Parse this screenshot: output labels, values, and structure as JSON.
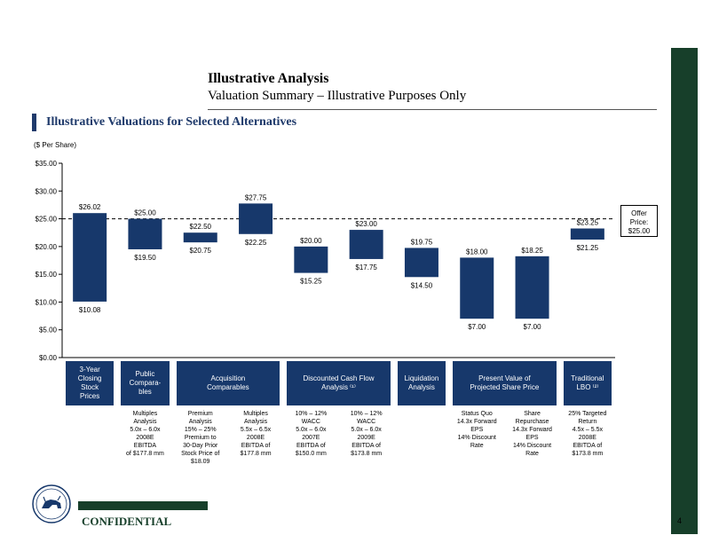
{
  "header": {
    "title": "Illustrative Analysis",
    "subtitle": "Valuation Summary – Illustrative Purposes Only",
    "section_title": "Illustrative Valuations for Selected Alternatives",
    "units": "($ Per Share)"
  },
  "offer": {
    "label": "Offer\nPrice:\n$25.00",
    "value": 25.0
  },
  "footer": {
    "confidential": "CONFIDENTIAL",
    "page_number": "4"
  },
  "colors": {
    "bar": "#17386b",
    "box": "#17386b",
    "accent_green": "#173f2a",
    "section_blue": "#1f3a6b"
  },
  "categories": [
    {
      "label": "3-Year\nClosing\nStock\nPrices",
      "notes": [
        ""
      ]
    },
    {
      "label": "Public\nCompara-\nbles",
      "notes": [
        "Multiples\nAnalysis\n5.0x – 6.0x\n2008E\nEBITDA\nof $177.8 mm"
      ]
    },
    {
      "label": "Acquisition\nComparables",
      "notes": [
        "Premium\nAnalysis\n15% – 25%\nPremium to\n30-Day Prior\nStock Price of\n$18.09",
        "Multiples\nAnalysis\n5.5x – 6.5x\n2008E\nEBITDA of\n$177.8 mm"
      ]
    },
    {
      "label": "Discounted Cash Flow\nAnalysis ⁽¹⁾",
      "notes": [
        "10% – 12%\nWACC\n5.0x – 6.0x\n2007E\nEBITDA of\n$150.0 mm",
        "10% – 12%\nWACC\n5.0x – 6.0x\n2009E\nEBITDA of\n$173.8 mm"
      ]
    },
    {
      "label": "Liquidation\nAnalysis",
      "notes": [
        ""
      ]
    },
    {
      "label": "Present Value of\nProjected Share Price",
      "notes": [
        "Status Quo\n14.3x Forward\nEPS\n14% Discount\nRate",
        "Share\nRepurchase\n14.3x Forward\nEPS\n14% Discount\nRate"
      ]
    },
    {
      "label": "Traditional\nLBO ⁽²⁾",
      "notes": [
        "25% Targeted\nReturn\n4.5x – 5.5x\n2008E\nEBITDA of\n$173.8 mm"
      ]
    }
  ],
  "chart_data": {
    "type": "bar",
    "subtype": "floating-range",
    "ylim": [
      0,
      35
    ],
    "yticks": [
      "$0.00",
      "$5.00",
      "$10.00",
      "$15.00",
      "$20.00",
      "$25.00",
      "$30.00",
      "$35.00"
    ],
    "ytick_values": [
      0,
      5,
      10,
      15,
      20,
      25,
      30,
      35
    ],
    "reference_line": 25.0,
    "bars": [
      {
        "low": 10.08,
        "high": 26.02,
        "low_label": "$10.08",
        "high_label": "$26.02"
      },
      {
        "low": 19.5,
        "high": 25.0,
        "low_label": "$19.50",
        "high_label": "$25.00"
      },
      {
        "low": 20.75,
        "high": 22.5,
        "low_label": "$20.75",
        "high_label": "$22.50"
      },
      {
        "low": 22.25,
        "high": 27.75,
        "low_label": "$22.25",
        "high_label": "$27.75"
      },
      {
        "low": 15.25,
        "high": 20.0,
        "low_label": "$15.25",
        "high_label": "$20.00"
      },
      {
        "low": 17.75,
        "high": 23.0,
        "low_label": "$17.75",
        "high_label": "$23.00"
      },
      {
        "low": 14.5,
        "high": 19.75,
        "low_label": "$14.50",
        "high_label": "$19.75"
      },
      {
        "low": 7.0,
        "high": 18.0,
        "low_label": "$7.00",
        "high_label": "$18.00"
      },
      {
        "low": 7.0,
        "high": 18.25,
        "low_label": "$7.00",
        "high_label": "$18.25"
      },
      {
        "low": 21.25,
        "high": 23.25,
        "low_label": "$21.25",
        "high_label": "$23.25"
      }
    ]
  }
}
